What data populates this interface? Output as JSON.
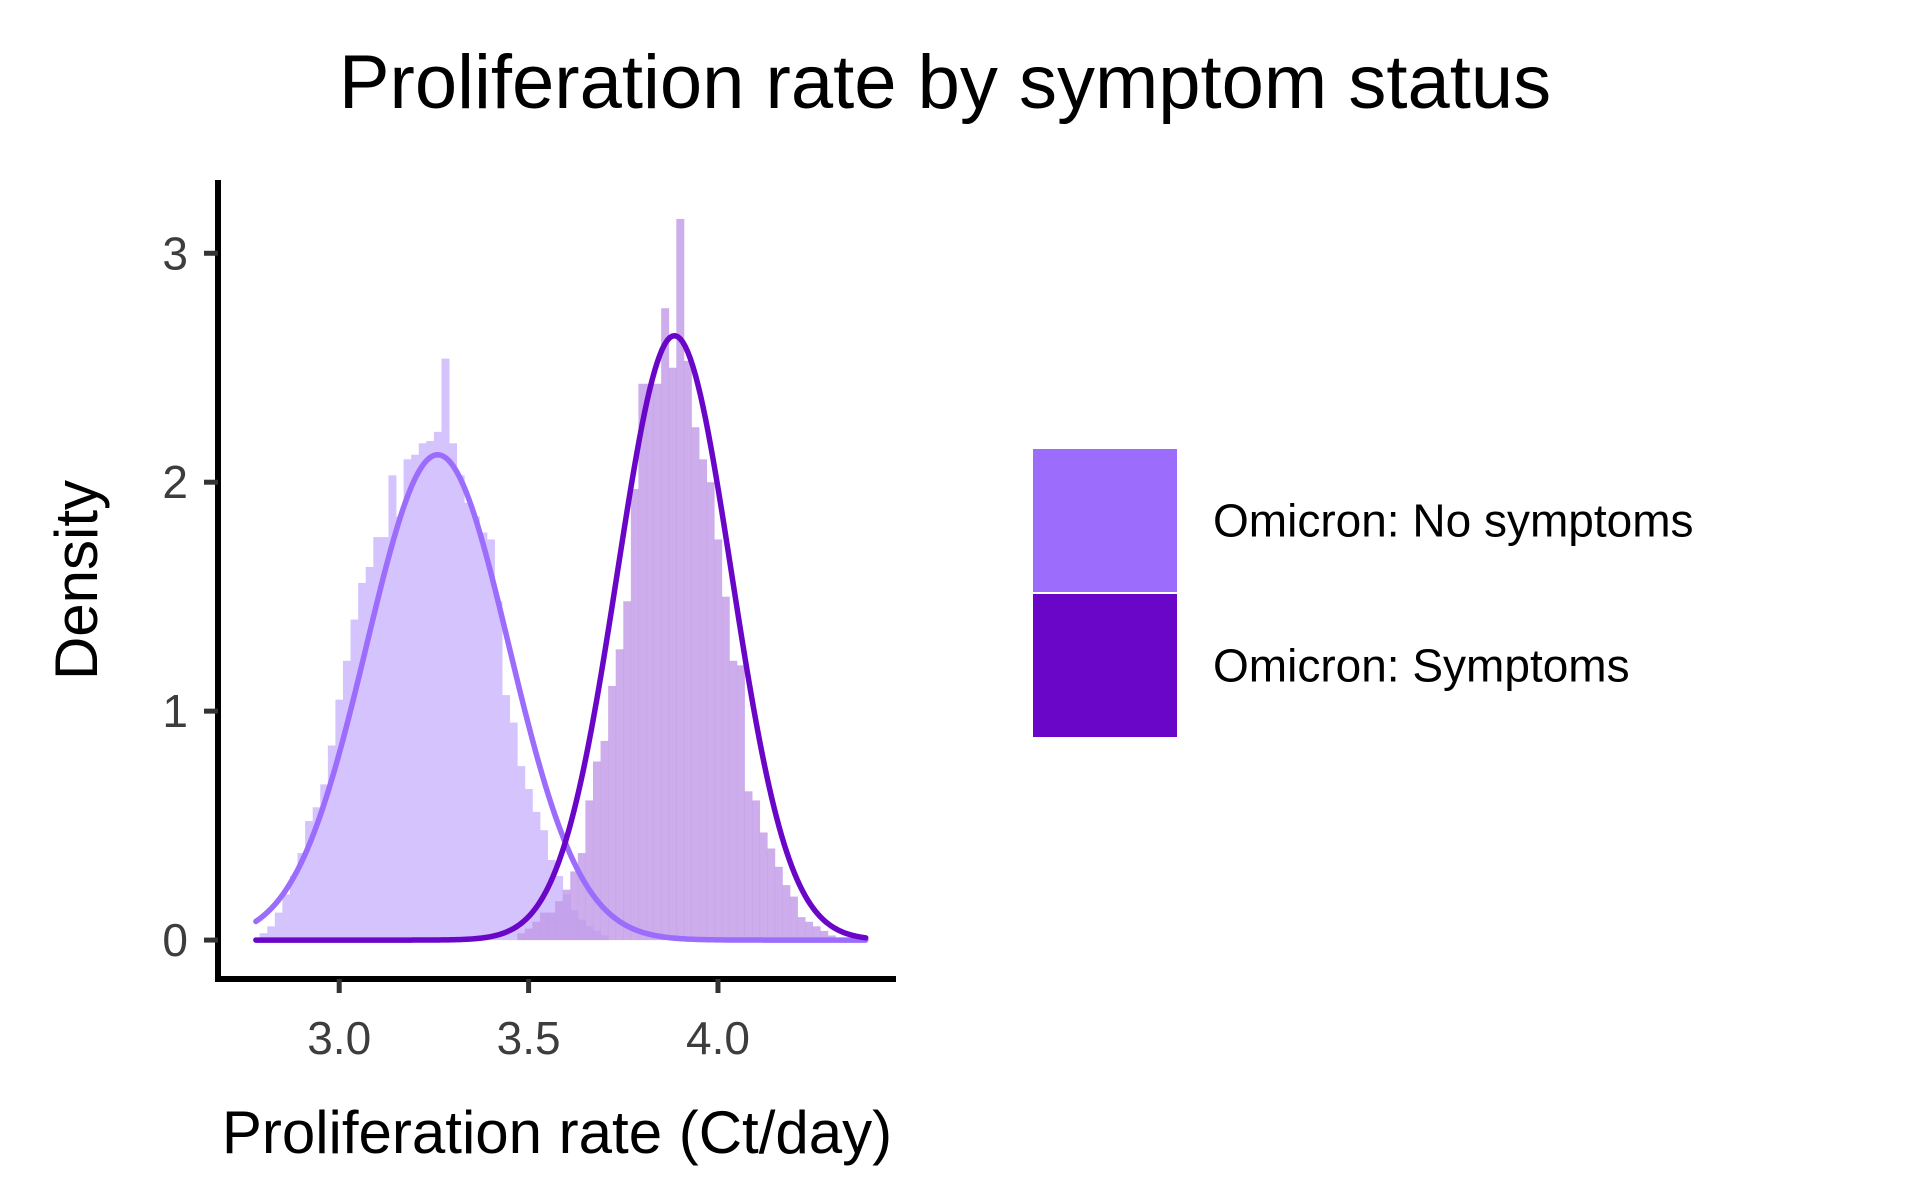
{
  "chart_data": {
    "type": "histogram_density",
    "title": "Proliferation rate by symptom status",
    "xlabel": "Proliferation rate (Ct/day)",
    "ylabel": "Density",
    "xlim": [
      2.68,
      4.47
    ],
    "ylim": [
      -0.17,
      3.32
    ],
    "x_ticks": [
      {
        "value": 3.0,
        "label": "3.0"
      },
      {
        "value": 3.5,
        "label": "3.5"
      },
      {
        "value": 4.0,
        "label": "4.0"
      }
    ],
    "y_ticks": [
      {
        "value": 0,
        "label": "0"
      },
      {
        "value": 1,
        "label": "1"
      },
      {
        "value": 2,
        "label": "2"
      },
      {
        "value": 3,
        "label": "3"
      }
    ],
    "grid": false,
    "legend_position": "right",
    "bin_width": 0.02,
    "series": [
      {
        "name": "Omicron: No symptoms",
        "line_color": "#9c6cfc",
        "hist_color": "#d4c3fd",
        "legend_color": "#9c6cfc",
        "density": {
          "mean": 3.26,
          "sd": 0.188,
          "peak": 2.12
        },
        "histogram": [
          [
            2.8,
            0.03
          ],
          [
            2.82,
            0.06
          ],
          [
            2.84,
            0.12
          ],
          [
            2.86,
            0.2
          ],
          [
            2.88,
            0.28
          ],
          [
            2.9,
            0.38
          ],
          [
            2.92,
            0.52
          ],
          [
            2.94,
            0.58
          ],
          [
            2.96,
            0.68
          ],
          [
            2.98,
            0.85
          ],
          [
            3.0,
            1.05
          ],
          [
            3.02,
            1.22
          ],
          [
            3.04,
            1.4
          ],
          [
            3.06,
            1.56
          ],
          [
            3.08,
            1.63
          ],
          [
            3.1,
            1.76
          ],
          [
            3.12,
            1.76
          ],
          [
            3.14,
            2.03
          ],
          [
            3.16,
            1.85
          ],
          [
            3.18,
            2.1
          ],
          [
            3.2,
            2.12
          ],
          [
            3.22,
            2.17
          ],
          [
            3.24,
            2.18
          ],
          [
            3.26,
            2.22
          ],
          [
            3.28,
            2.54
          ],
          [
            3.3,
            2.17
          ],
          [
            3.32,
            2.03
          ],
          [
            3.34,
            1.91
          ],
          [
            3.36,
            1.85
          ],
          [
            3.38,
            1.78
          ],
          [
            3.4,
            1.75
          ],
          [
            3.42,
            1.48
          ],
          [
            3.44,
            1.07
          ],
          [
            3.46,
            0.95
          ],
          [
            3.48,
            0.76
          ],
          [
            3.5,
            0.66
          ],
          [
            3.52,
            0.56
          ],
          [
            3.54,
            0.48
          ],
          [
            3.56,
            0.35
          ],
          [
            3.58,
            0.28
          ],
          [
            3.6,
            0.2
          ],
          [
            3.62,
            0.13
          ],
          [
            3.64,
            0.09
          ],
          [
            3.66,
            0.06
          ],
          [
            3.68,
            0.04
          ],
          [
            3.7,
            0.02
          ]
        ]
      },
      {
        "name": "Omicron: Symptoms",
        "line_color": "#6a06c8",
        "hist_color": "#c29be8",
        "legend_color": "#6a06c8",
        "density": {
          "mean": 3.885,
          "sd": 0.151,
          "peak": 2.64
        },
        "histogram": [
          [
            3.48,
            0.03
          ],
          [
            3.5,
            0.05
          ],
          [
            3.52,
            0.08
          ],
          [
            3.54,
            0.12
          ],
          [
            3.56,
            0.12
          ],
          [
            3.58,
            0.17
          ],
          [
            3.6,
            0.22
          ],
          [
            3.62,
            0.3
          ],
          [
            3.64,
            0.38
          ],
          [
            3.66,
            0.61
          ],
          [
            3.68,
            0.78
          ],
          [
            3.7,
            0.87
          ],
          [
            3.72,
            1.11
          ],
          [
            3.74,
            1.27
          ],
          [
            3.76,
            1.48
          ],
          [
            3.78,
            1.97
          ],
          [
            3.8,
            2.43
          ],
          [
            3.82,
            2.43
          ],
          [
            3.84,
            2.43
          ],
          [
            3.86,
            2.76
          ],
          [
            3.88,
            2.5
          ],
          [
            3.9,
            3.15
          ],
          [
            3.92,
            2.53
          ],
          [
            3.94,
            2.24
          ],
          [
            3.96,
            2.1
          ],
          [
            3.98,
            2.0
          ],
          [
            4.0,
            1.75
          ],
          [
            4.02,
            1.5
          ],
          [
            4.04,
            1.22
          ],
          [
            4.06,
            1.2
          ],
          [
            4.08,
            0.65
          ],
          [
            4.1,
            0.61
          ],
          [
            4.12,
            0.47
          ],
          [
            4.14,
            0.4
          ],
          [
            4.16,
            0.32
          ],
          [
            4.18,
            0.24
          ],
          [
            4.2,
            0.19
          ],
          [
            4.22,
            0.1
          ],
          [
            4.24,
            0.08
          ],
          [
            4.26,
            0.06
          ],
          [
            4.28,
            0.04
          ],
          [
            4.3,
            0.02
          ]
        ]
      }
    ],
    "curve_range": [
      2.78,
      4.39
    ]
  }
}
